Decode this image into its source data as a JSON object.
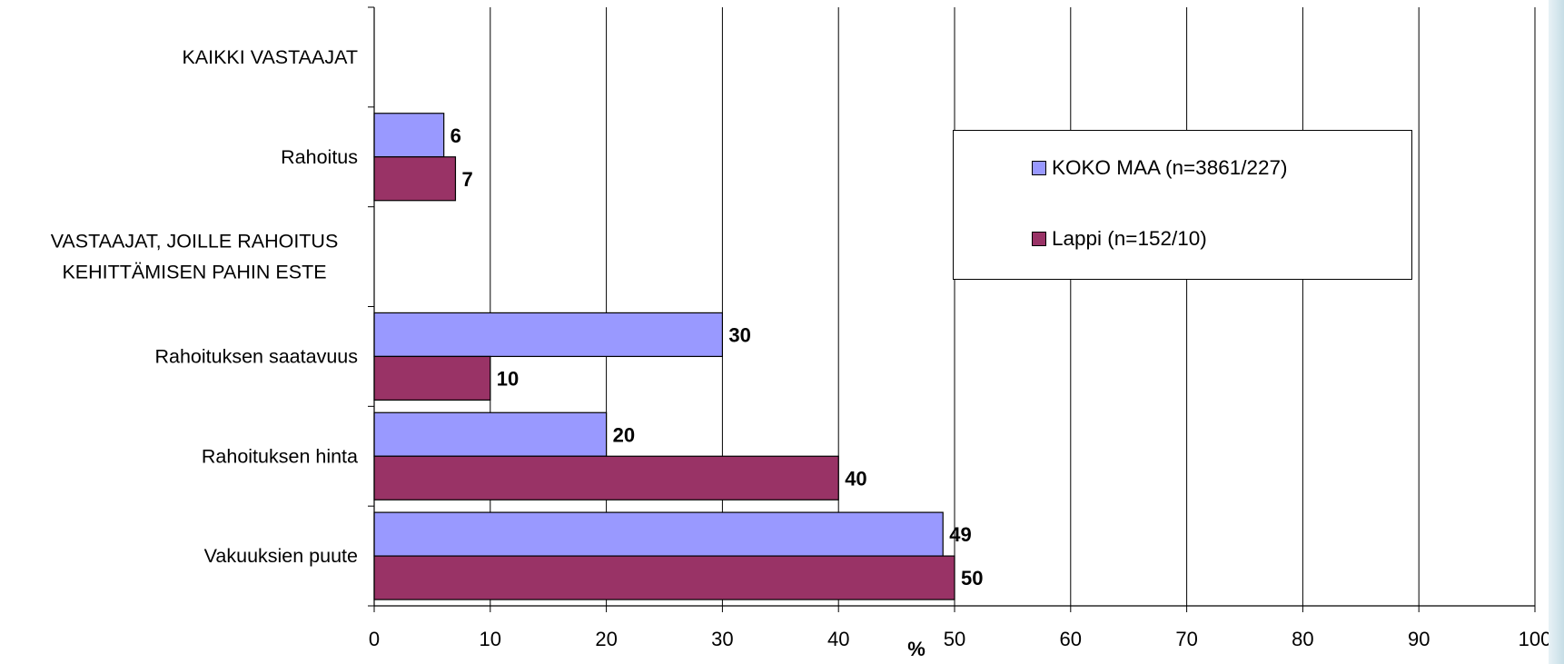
{
  "chart_data": {
    "type": "bar",
    "orientation": "horizontal",
    "categories": [
      "KAIKKI VASTAAJAT",
      "Rahoitus",
      "VASTAAJAT, JOILLE RAHOITUS\nKEHITTÄMISEN PAHIN ESTE",
      "Rahoituksen saatavuus",
      "Rahoituksen hinta",
      "Vakuuksien puute"
    ],
    "series": [
      {
        "name": "KOKO MAA (n=3861/227)",
        "color": "#9999ff",
        "values": [
          null,
          6,
          null,
          30,
          20,
          49
        ]
      },
      {
        "name": "Lappi (n=152/10)",
        "color": "#993366",
        "values": [
          null,
          7,
          null,
          10,
          40,
          50
        ]
      }
    ],
    "xlabel": "%",
    "ylabel": "",
    "xlim": [
      0,
      100
    ],
    "xticks": [
      0,
      10,
      20,
      30,
      40,
      50,
      60,
      70,
      80,
      90,
      100
    ],
    "grid": "vertical",
    "legend_position": "upper-right"
  }
}
